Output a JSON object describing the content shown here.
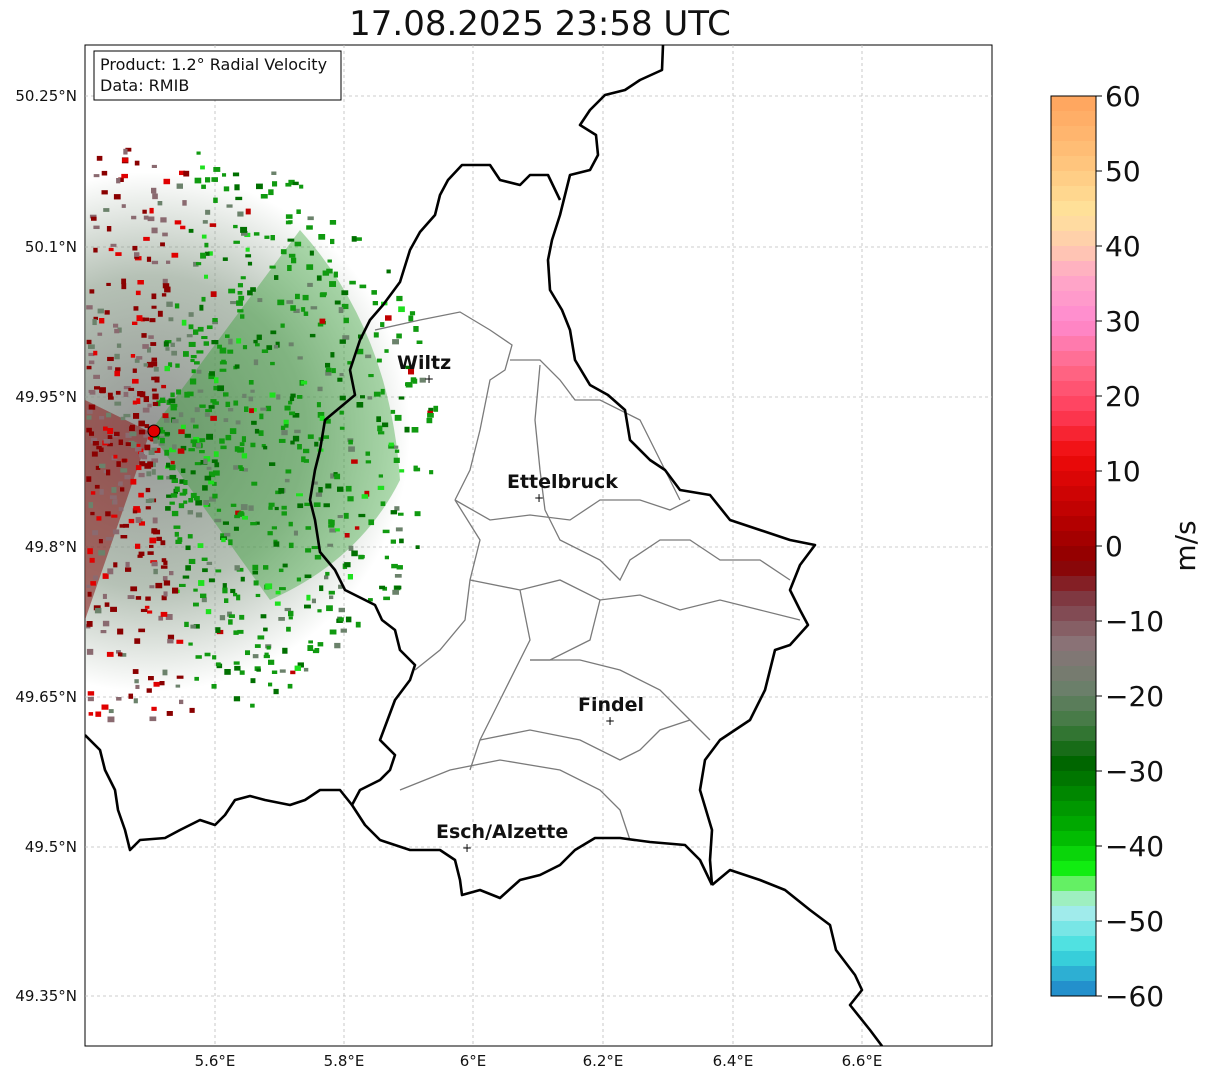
{
  "title": "17.08.2025 23:58 UTC",
  "info": {
    "product": "Product: 1.2° Radial Velocity",
    "source": "Data: RMIB"
  },
  "axes": {
    "lon_ticks": [
      "5.6°E",
      "5.8°E",
      "6°E",
      "6.2°E",
      "6.4°E",
      "6.6°E"
    ],
    "lat_ticks": [
      "50.25°N",
      "50.1°N",
      "49.95°N",
      "49.8°N",
      "49.65°N",
      "49.5°N",
      "49.35°N"
    ]
  },
  "cities": [
    {
      "name": "Wiltz"
    },
    {
      "name": "Ettelbruck"
    },
    {
      "name": "Findel"
    },
    {
      "name": "Esch/Alzette"
    }
  ],
  "colorbar": {
    "unit": "m/s",
    "ticks": [
      "60",
      "50",
      "40",
      "30",
      "20",
      "10",
      "0",
      "−10",
      "−20",
      "−30",
      "−40",
      "−50",
      "−60"
    ]
  }
}
